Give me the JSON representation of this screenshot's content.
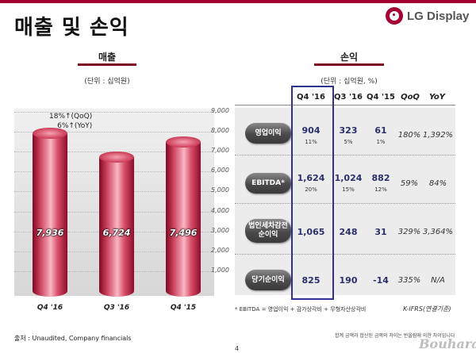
{
  "header": {
    "title": "매출 및 손익",
    "logo_text": "LG Display",
    "brand_color": "#a50034"
  },
  "revenue": {
    "section_title": "매출",
    "unit": "(단위 : 십억원)",
    "growth_qoq": "18%↑(QoQ)",
    "growth_yoy": "6%↑(YoY)",
    "value_labels": [
      "7,936",
      "6,724",
      "7,496"
    ]
  },
  "chart_data": {
    "type": "bar",
    "title": "매출",
    "categories": [
      "Q4 '16",
      "Q3 '16",
      "Q4 '15"
    ],
    "values": [
      7936,
      6724,
      7496
    ],
    "ylim": [
      0,
      9000
    ],
    "yticks": [
      "1,000",
      "2,000",
      "3,000",
      "4,000",
      "5,000",
      "6,000",
      "7,000",
      "8,000",
      "9,000"
    ],
    "bar_color": "#c0344f",
    "grid": true
  },
  "pnl": {
    "section_title": "손익",
    "unit": "(단위 : 십억원, %)",
    "columns": [
      "Q4 '16",
      "Q3 '16",
      "Q4 '15",
      "QoQ",
      "YoY"
    ],
    "rows": [
      {
        "label": "영업이익",
        "label2": "",
        "values": [
          "904",
          "323",
          "61"
        ],
        "margins": [
          "11%",
          "5%",
          "1%"
        ],
        "qoq": "180%",
        "yoy": "1,392%"
      },
      {
        "label": "EBITDA*",
        "label2": "",
        "values": [
          "1,624",
          "1,024",
          "882"
        ],
        "margins": [
          "20%",
          "15%",
          "12%"
        ],
        "qoq": "59%",
        "yoy": "84%"
      },
      {
        "label": "법인세차감전",
        "label2": "순이익",
        "values": [
          "1,065",
          "248",
          "31"
        ],
        "margins": [
          "",
          "",
          ""
        ],
        "qoq": "329%",
        "yoy": "3,364%"
      },
      {
        "label": "당기순이익",
        "label2": "",
        "values": [
          "825",
          "190",
          "-14"
        ],
        "margins": [
          "",
          "",
          ""
        ],
        "qoq": "335%",
        "yoy": "N/A"
      }
    ],
    "footnote": "* EBITDA = 영업이익 + 감가상각비 + 무형자산상각비",
    "standard": "K-IFRS(연결기준)"
  },
  "footer": {
    "source": "출처 : Unaudited, Company financials",
    "note": "합계 금액과 합산된 금액의 차이는 반올림에 의한 차이입니다",
    "page": "4",
    "watermark": "Bouhara"
  }
}
